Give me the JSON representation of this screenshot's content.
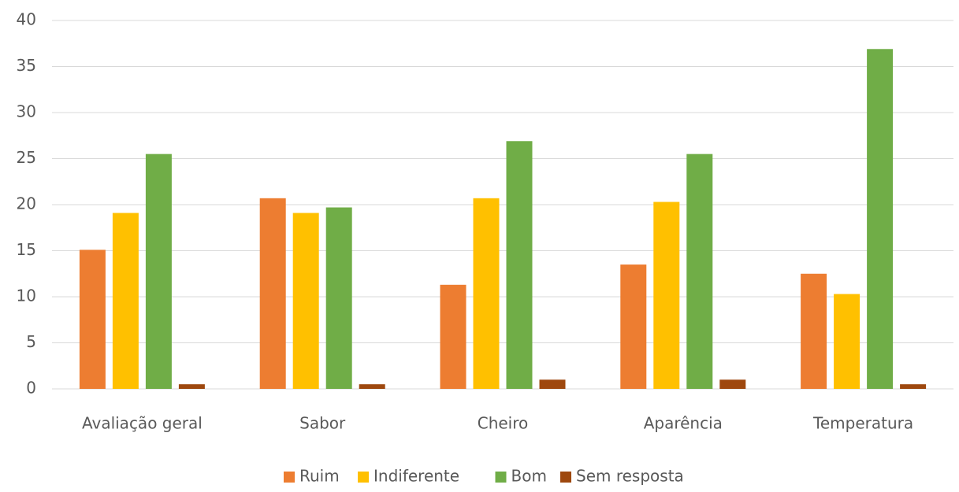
{
  "chart_data": {
    "type": "bar",
    "categories": [
      "Avaliação geral",
      "Sabor",
      "Cheiro",
      "Aparência",
      "Temperatura"
    ],
    "series": [
      {
        "name": "Ruim",
        "color": "#ed7d31",
        "values": [
          15.1,
          20.7,
          11.3,
          13.5,
          12.5
        ]
      },
      {
        "name": "Indiferente",
        "color": "#ffc000",
        "values": [
          19.1,
          19.1,
          20.7,
          20.3,
          10.3
        ]
      },
      {
        "name": "Bom",
        "color": "#70ad47",
        "values": [
          25.5,
          19.7,
          26.9,
          25.5,
          36.9
        ]
      },
      {
        "name": "Sem resposta",
        "color": "#9e480e",
        "values": [
          0.5,
          0.5,
          1,
          1,
          0.5
        ]
      }
    ],
    "ylim": [
      0,
      40
    ],
    "yticks": [
      0,
      5,
      10,
      15,
      20,
      25,
      30,
      35,
      40
    ],
    "grid": true,
    "legend": "bottom"
  }
}
